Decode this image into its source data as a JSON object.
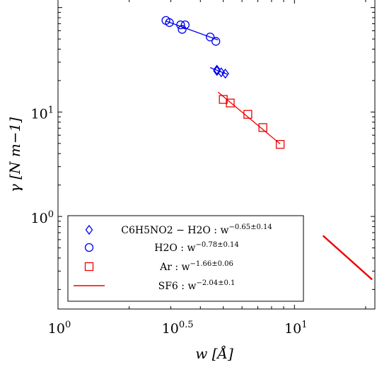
{
  "chart_data": {
    "type": "scatter",
    "xscale": "log",
    "yscale": "log",
    "xlim": [
      1,
      21.88
    ],
    "ylim": [
      0.13,
      120
    ],
    "x_ticks": [
      {
        "value": 1,
        "label": "10^0"
      },
      {
        "value": 3.1623,
        "label": "10^0.5"
      },
      {
        "value": 10,
        "label": "10^1"
      }
    ],
    "y_ticks": [
      {
        "value": 1,
        "label": "10^0"
      },
      {
        "value": 10,
        "label": "10^1"
      }
    ],
    "xlabel": "w [Å]",
    "ylabel": "γ [N m−1]",
    "legend_position": "lower-left",
    "series": [
      {
        "name": "C6H5NO2 − H2O : w^−0.65±0.14",
        "marker": "diamond",
        "color": "#0000ee",
        "points": [
          [
            4.7,
            25.4
          ],
          [
            4.7,
            24.7
          ],
          [
            4.9,
            24.0
          ],
          [
            5.1,
            23.3
          ]
        ],
        "fit": {
          "x": [
            4.4,
            5.2
          ],
          "y": [
            26.6,
            23.0
          ]
        }
      },
      {
        "name": "H2O : w^−0.78±0.14",
        "marker": "circle",
        "color": "#0000ee",
        "points": [
          [
            2.86,
            75.3
          ],
          [
            2.96,
            71.8
          ],
          [
            3.3,
            68.3
          ],
          [
            3.35,
            61.8
          ],
          [
            3.45,
            68.3
          ],
          [
            4.4,
            52.3
          ],
          [
            4.65,
            47.5
          ]
        ],
        "fit": {
          "x": [
            2.86,
            4.75
          ],
          "y": [
            74.3,
            49.0
          ]
        }
      },
      {
        "name": "Ar : w^−1.66±0.06",
        "marker": "square",
        "color": "#ee0000",
        "points": [
          [
            5.0,
            13.2
          ],
          [
            5.35,
            12.2
          ],
          [
            6.35,
            9.5
          ],
          [
            7.35,
            7.1
          ],
          [
            8.7,
            4.9
          ]
        ],
        "fit": {
          "x": [
            4.75,
            8.7
          ],
          "y": [
            15.5,
            4.95
          ]
        }
      },
      {
        "name": "SF6 : w^−2.04±0.1",
        "marker": "line",
        "color": "#ee0000",
        "points": [],
        "fit": {
          "x": [
            13.2,
            21.3
          ],
          "y": [
            0.655,
            0.249
          ]
        }
      }
    ],
    "legend_labels": [
      {
        "label": "C6H5NO2 − H2O : w",
        "exp": "−0.65±0.14"
      },
      {
        "label": "H2O : w",
        "exp": "−0.78±0.14"
      },
      {
        "label": "Ar : w",
        "exp": "−1.66±0.06"
      },
      {
        "label": "SF6 : w",
        "exp": "−2.04±0.1"
      }
    ]
  }
}
